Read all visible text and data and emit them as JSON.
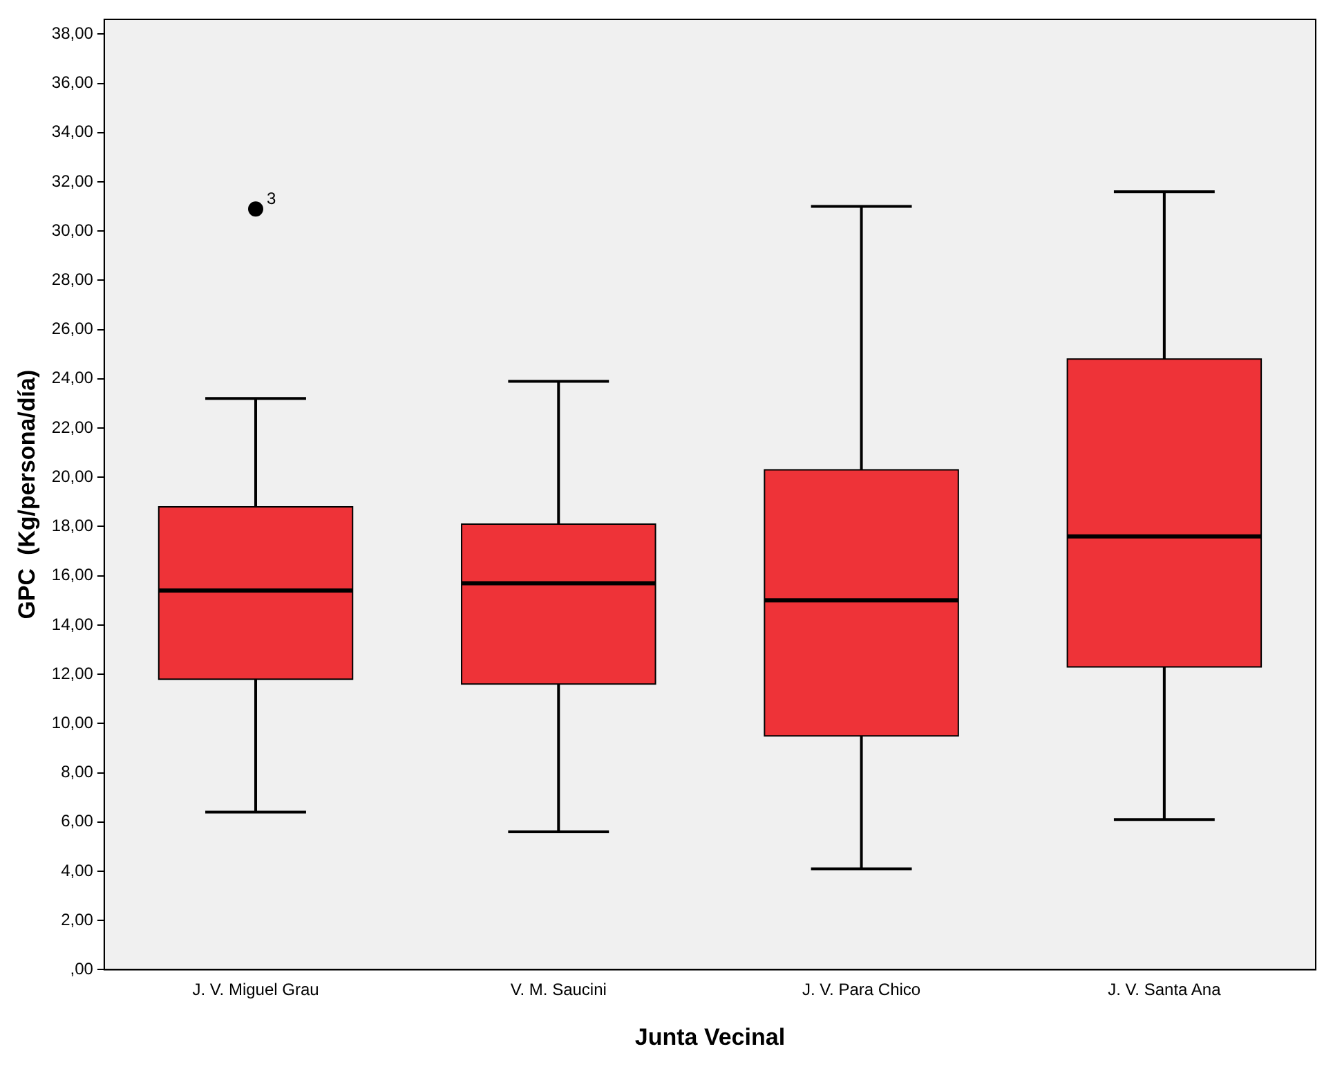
{
  "chart_data": {
    "type": "box",
    "xlabel": "Junta Vecinal",
    "ylabel": "GPC  (Kg/persona/día)",
    "categories": [
      "J. V. Miguel Grau",
      "V. M. Saucini",
      "J. V. Para Chico",
      "J. V. Santa Ana"
    ],
    "color": "#ee3338",
    "boxes": [
      {
        "low": 6.4,
        "q1": 11.8,
        "median": 15.4,
        "q3": 18.8,
        "high": 23.2,
        "outliers": [
          30.9
        ]
      },
      {
        "low": 5.6,
        "q1": 11.6,
        "median": 15.7,
        "q3": 18.1,
        "high": 23.9
      },
      {
        "low": 4.1,
        "q1": 9.5,
        "median": 15.0,
        "q3": 20.3,
        "high": 31.0
      },
      {
        "low": 6.1,
        "q1": 12.3,
        "median": 17.6,
        "q3": 24.8,
        "high": 31.6
      }
    ],
    "annotations": [
      "3"
    ],
    "ylim": [
      0,
      38.6
    ],
    "yticks": [
      {
        "value": 0,
        "label": ",00"
      },
      {
        "value": 2,
        "label": "2,00"
      },
      {
        "value": 4,
        "label": "4,00"
      },
      {
        "value": 6,
        "label": "6,00"
      },
      {
        "value": 8,
        "label": "8,00"
      },
      {
        "value": 10,
        "label": "10,00"
      },
      {
        "value": 12,
        "label": "12,00"
      },
      {
        "value": 14,
        "label": "14,00"
      },
      {
        "value": 16,
        "label": "16,00"
      },
      {
        "value": 18,
        "label": "18,00"
      },
      {
        "value": 20,
        "label": "20,00"
      },
      {
        "value": 22,
        "label": "22,00"
      },
      {
        "value": 24,
        "label": "24,00"
      },
      {
        "value": 26,
        "label": "26,00"
      },
      {
        "value": 28,
        "label": "28,00"
      },
      {
        "value": 30,
        "label": "30,00"
      },
      {
        "value": 32,
        "label": "32,00"
      },
      {
        "value": 34,
        "label": "34,00"
      },
      {
        "value": 36,
        "label": "36,00"
      },
      {
        "value": 38,
        "label": "38,00"
      }
    ],
    "marker": "circle",
    "grid": false,
    "legend": false
  }
}
